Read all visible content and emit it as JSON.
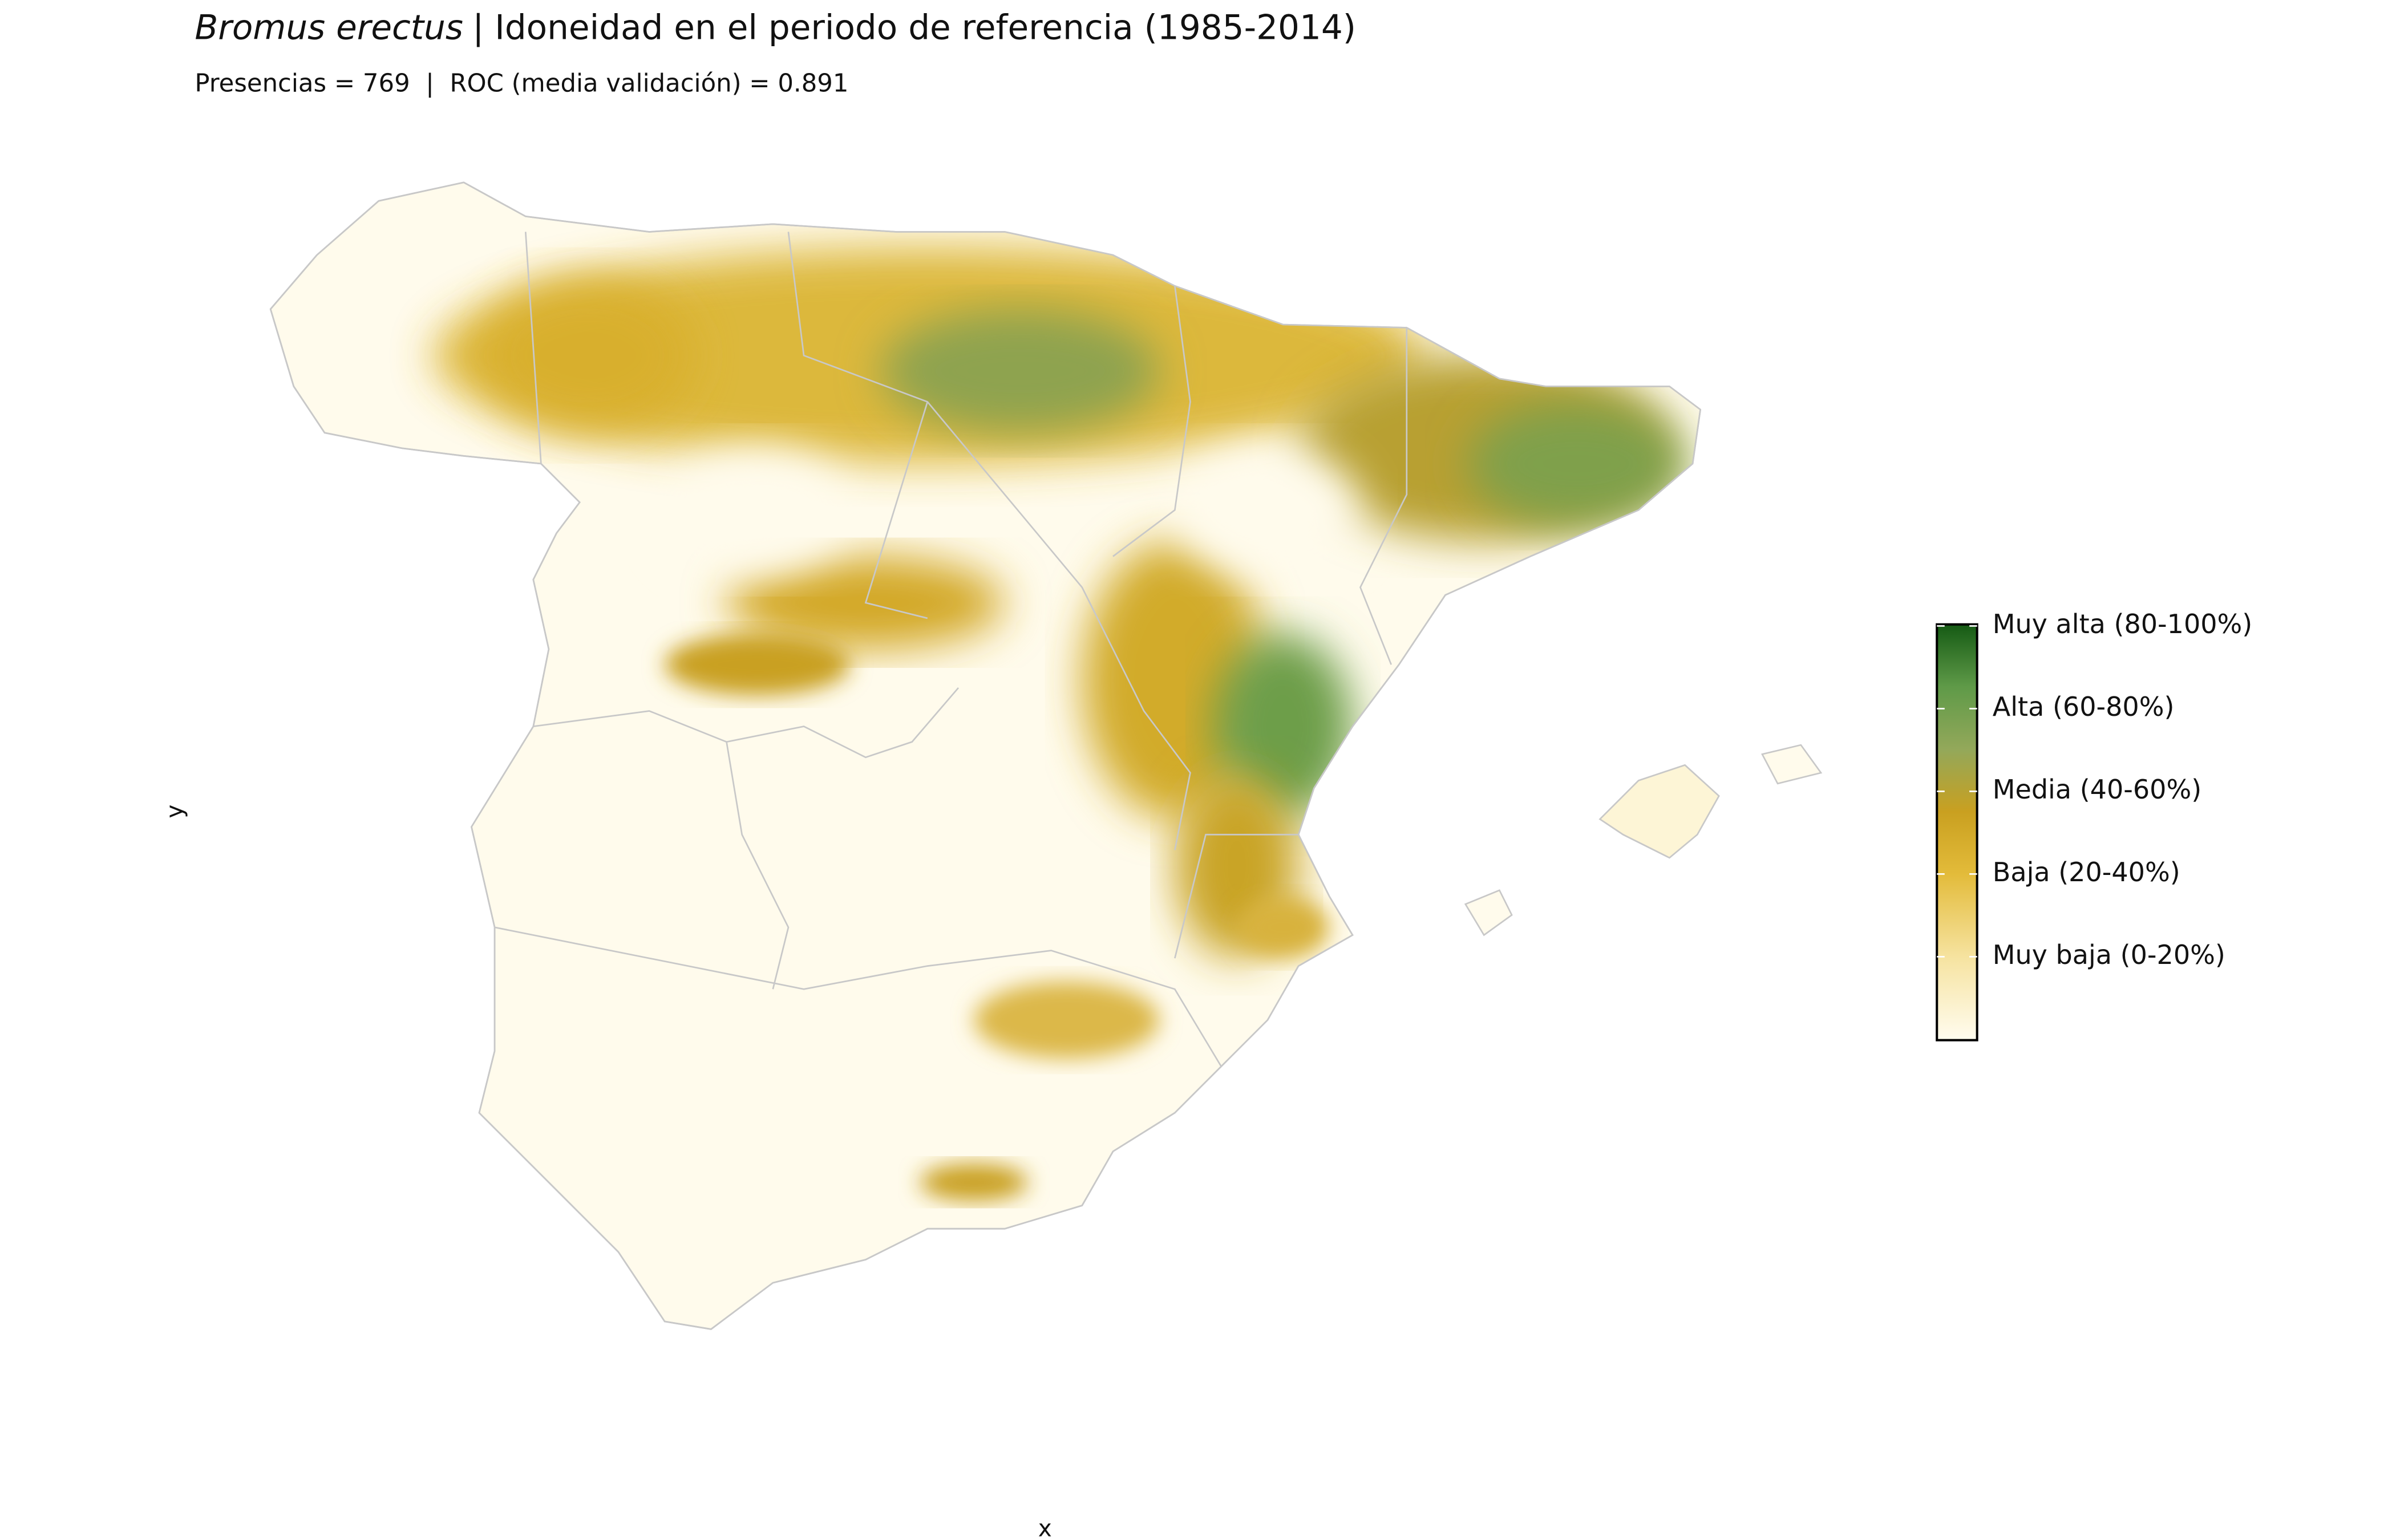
{
  "header": {
    "title_species": "Bromus erectus",
    "title_text": "| Idoneidad en el periodo de referencia (1985-2014)",
    "subtitle": "Presencias = 769  |  ROC (media validación) = 0.891"
  },
  "axes": {
    "x": "x",
    "y": "y"
  },
  "legend": {
    "labels": [
      "Muy alta (80-100%)",
      "Alta (60-80%)",
      "Media (40-60%)",
      "Baja (20-40%)",
      "Muy baja (0-20%)"
    ]
  }
}
